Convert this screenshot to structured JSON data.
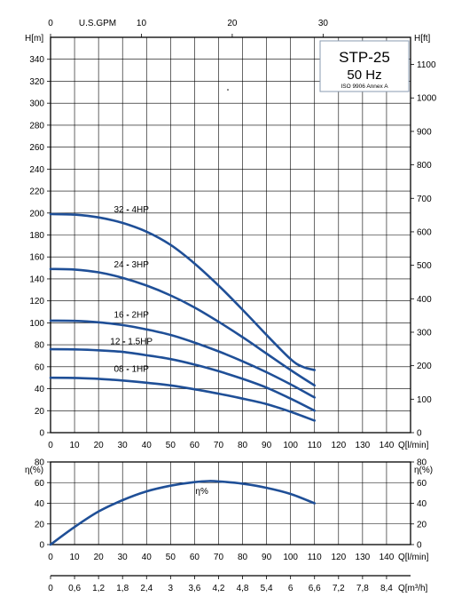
{
  "colors": {
    "curve": "#1f4f97",
    "title": "#1f4f97",
    "label": "#1f4f97",
    "grid": "#000000",
    "box_bg": "#ffffff",
    "box_border": "#8a9bb0"
  },
  "title_box": {
    "model": "STP-25",
    "frequency": "50 Hz",
    "standard": "ISO 9906 Annex A"
  },
  "chart_data": [
    {
      "type": "line",
      "name": "head",
      "xlabel": "Q[l/min]",
      "ylabel_left": "H[m]",
      "ylabel_right": "H[ft]",
      "top_axis_label": "U.S.GPM",
      "xlim": [
        0,
        150
      ],
      "ylim": [
        0,
        360
      ],
      "ft_lim": [
        0,
        1181.1
      ],
      "grid": true,
      "x_ticks": [
        0,
        10,
        20,
        30,
        40,
        50,
        60,
        70,
        80,
        90,
        100,
        110,
        120,
        130,
        140
      ],
      "y_ticks": [
        0,
        20,
        40,
        60,
        80,
        100,
        120,
        140,
        160,
        180,
        200,
        220,
        240,
        260,
        280,
        300,
        320,
        340
      ],
      "ft_ticks": [
        0,
        100,
        200,
        300,
        400,
        500,
        600,
        700,
        800,
        900,
        1000,
        1100
      ],
      "gpm_ticks": [
        0,
        10,
        20,
        30
      ],
      "series": [
        {
          "name": "32 - 4HP",
          "label_at": [
            30,
            199
          ],
          "x": [
            0,
            10,
            20,
            30,
            40,
            50,
            60,
            70,
            80,
            90,
            100,
            105,
            110
          ],
          "y": [
            199,
            198.5,
            196,
            191,
            183,
            171,
            154,
            134,
            112,
            89,
            67,
            60,
            57
          ]
        },
        {
          "name": "24 - 3HP",
          "label_at": [
            30,
            149
          ],
          "x": [
            0,
            10,
            20,
            30,
            40,
            50,
            60,
            70,
            80,
            90,
            100,
            110
          ],
          "y": [
            149,
            148.5,
            146,
            141,
            134,
            125,
            114,
            101,
            87,
            72,
            57,
            43
          ]
        },
        {
          "name": "16 - 2HP",
          "label_at": [
            30,
            103
          ],
          "x": [
            0,
            10,
            20,
            30,
            40,
            50,
            60,
            70,
            80,
            90,
            100,
            110
          ],
          "y": [
            102,
            101.8,
            100.5,
            98,
            94,
            89,
            82,
            74,
            65,
            55,
            44,
            32
          ]
        },
        {
          "name": "12 - 1.5HP",
          "label_at": [
            30,
            79
          ],
          "x": [
            0,
            10,
            20,
            30,
            40,
            50,
            60,
            70,
            80,
            90,
            100,
            110
          ],
          "y": [
            76,
            75.8,
            75,
            73.5,
            70.5,
            67,
            62,
            56,
            49,
            41,
            31,
            20
          ]
        },
        {
          "name": "08 - 1HP",
          "label_at": [
            30,
            54
          ],
          "x": [
            0,
            10,
            20,
            30,
            40,
            50,
            60,
            70,
            80,
            90,
            100,
            110
          ],
          "y": [
            50,
            49.8,
            49,
            47.5,
            45.5,
            43,
            39.5,
            35.5,
            31,
            26,
            19,
            11
          ]
        }
      ]
    },
    {
      "type": "line",
      "name": "efficiency",
      "xlabel": "Q[l/min]",
      "ylabel_left": "η(%)",
      "ylabel_right": "η(%)",
      "xlim": [
        0,
        150
      ],
      "ylim": [
        0,
        80
      ],
      "grid": true,
      "x_ticks": [
        0,
        10,
        20,
        30,
        40,
        50,
        60,
        70,
        80,
        90,
        100,
        110,
        120,
        130,
        140
      ],
      "y_ticks": [
        0,
        20,
        40,
        60,
        80
      ],
      "series": [
        {
          "name": "η%",
          "label_at": [
            66,
            49
          ],
          "x": [
            0,
            10,
            20,
            30,
            40,
            50,
            60,
            66,
            70,
            80,
            90,
            100,
            110
          ],
          "y": [
            0,
            17,
            32,
            43,
            51.5,
            57,
            60.5,
            61.5,
            61.2,
            59,
            55,
            49,
            40
          ]
        }
      ]
    },
    {
      "type": "axis",
      "name": "m3h-axis",
      "xlabel": "Q[m³/h]",
      "xlim": [
        0,
        9
      ],
      "x_ticks": [
        "0",
        "0,6",
        "1,2",
        "1,8",
        "2,4",
        "3",
        "3,6",
        "4,2",
        "4,8",
        "5,4",
        "6",
        "6,6",
        "7,2",
        "7,8",
        "8,4"
      ]
    }
  ]
}
